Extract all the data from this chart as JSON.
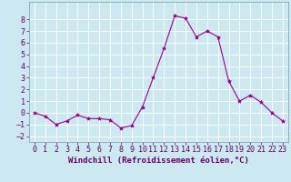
{
  "x": [
    0,
    1,
    2,
    3,
    4,
    5,
    6,
    7,
    8,
    9,
    10,
    11,
    12,
    13,
    14,
    15,
    16,
    17,
    18,
    19,
    20,
    21,
    22,
    23
  ],
  "y": [
    0.0,
    -0.3,
    -1.0,
    -0.7,
    -0.2,
    -0.5,
    -0.5,
    -0.6,
    -1.3,
    -1.1,
    0.5,
    3.0,
    5.5,
    8.3,
    8.1,
    6.5,
    7.0,
    6.5,
    2.7,
    1.0,
    1.5,
    0.9,
    0.0,
    -0.7
  ],
  "line_color": "#990099",
  "marker": "*",
  "marker_size": 3,
  "bg_color": "#cce8f0",
  "grid_color": "#aacccc",
  "xlabel": "Windchill (Refroidissement éolien,°C)",
  "xlabel_fontsize": 6.5,
  "tick_fontsize": 6.0,
  "ylim": [
    -2.5,
    9.5
  ],
  "xlim": [
    -0.5,
    23.5
  ],
  "yticks": [
    -2,
    -1,
    0,
    1,
    2,
    3,
    4,
    5,
    6,
    7,
    8
  ],
  "xticks": [
    0,
    1,
    2,
    3,
    4,
    5,
    6,
    7,
    8,
    9,
    10,
    11,
    12,
    13,
    14,
    15,
    16,
    17,
    18,
    19,
    20,
    21,
    22,
    23
  ]
}
